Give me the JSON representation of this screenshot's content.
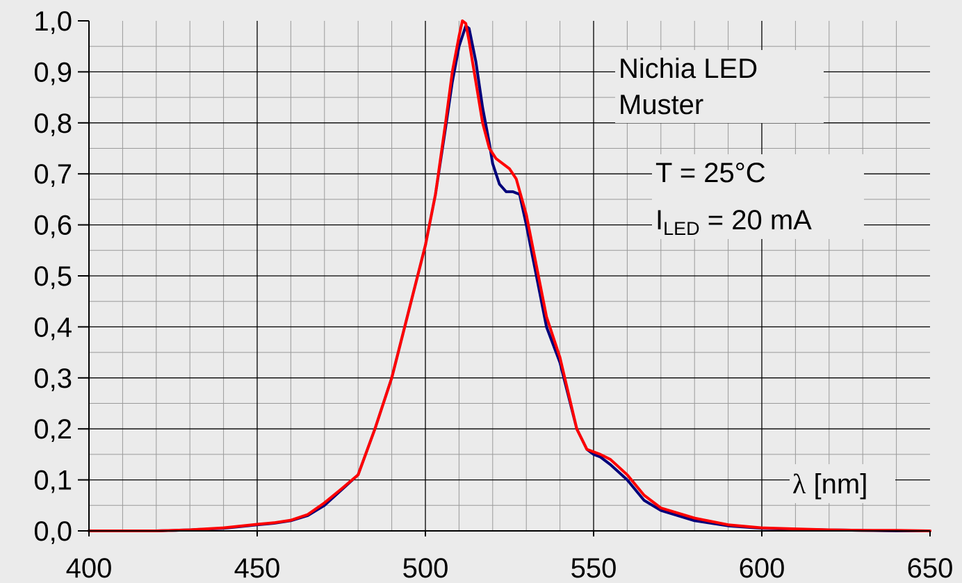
{
  "chart_data": {
    "type": "line",
    "title": "",
    "xlabel": "",
    "ylabel": "",
    "xlim": [
      400,
      650
    ],
    "ylim": [
      0,
      1
    ],
    "grid": true,
    "x_ticks": [
      "400",
      "450",
      "500",
      "550",
      "600",
      "650"
    ],
    "y_ticks": [
      "0,0",
      "0,1",
      "0,2",
      "0,3",
      "0,4",
      "0,5",
      "0,6",
      "0,7",
      "0,8",
      "0,9",
      "1,0"
    ],
    "annotations": {
      "device_line1": "Nichia LED",
      "device_line2": "Muster",
      "temperature": "T = 25°C",
      "current_symbol": "I",
      "current_subscript": "LED",
      "current_value": " = 20 mA",
      "x_axis_symbol": "λ",
      "x_axis_unit": " [nm]"
    },
    "series": [
      {
        "color": "#00007a",
        "x": [
          400,
          420,
          430,
          440,
          450,
          455,
          460,
          465,
          470,
          475,
          480,
          485,
          490,
          495,
          500,
          503,
          506,
          508,
          510,
          512,
          513,
          515,
          517,
          519,
          520,
          522,
          524,
          526,
          528,
          530,
          533,
          536,
          540,
          545,
          548,
          550,
          552,
          555,
          560,
          565,
          570,
          580,
          590,
          600,
          610,
          620,
          630,
          640,
          650
        ],
        "y": [
          0,
          0,
          0.002,
          0.005,
          0.012,
          0.015,
          0.02,
          0.03,
          0.05,
          0.08,
          0.11,
          0.2,
          0.3,
          0.43,
          0.56,
          0.66,
          0.79,
          0.88,
          0.95,
          0.99,
          0.985,
          0.92,
          0.83,
          0.76,
          0.72,
          0.68,
          0.665,
          0.665,
          0.66,
          0.6,
          0.5,
          0.4,
          0.33,
          0.2,
          0.16,
          0.15,
          0.145,
          0.13,
          0.1,
          0.06,
          0.04,
          0.02,
          0.01,
          0.005,
          0.003,
          0.002,
          0.001,
          0,
          0
        ]
      },
      {
        "color": "#ff0000",
        "x": [
          400,
          420,
          430,
          440,
          450,
          455,
          460,
          465,
          470,
          475,
          480,
          485,
          490,
          495,
          500,
          503,
          506,
          508,
          510,
          511,
          512,
          513,
          515,
          517,
          519,
          521,
          523,
          525,
          527,
          530,
          533,
          536,
          540,
          545,
          548,
          550,
          552,
          555,
          560,
          565,
          570,
          580,
          590,
          600,
          610,
          620,
          630,
          640,
          650
        ],
        "y": [
          0,
          0,
          0.002,
          0.006,
          0.013,
          0.016,
          0.021,
          0.032,
          0.055,
          0.082,
          0.11,
          0.2,
          0.3,
          0.43,
          0.56,
          0.66,
          0.8,
          0.9,
          0.97,
          1.0,
          0.995,
          0.96,
          0.88,
          0.8,
          0.75,
          0.73,
          0.72,
          0.71,
          0.69,
          0.62,
          0.52,
          0.42,
          0.34,
          0.2,
          0.16,
          0.155,
          0.15,
          0.14,
          0.11,
          0.07,
          0.045,
          0.025,
          0.012,
          0.006,
          0.004,
          0.002,
          0.001,
          0.001,
          0
        ]
      }
    ]
  }
}
